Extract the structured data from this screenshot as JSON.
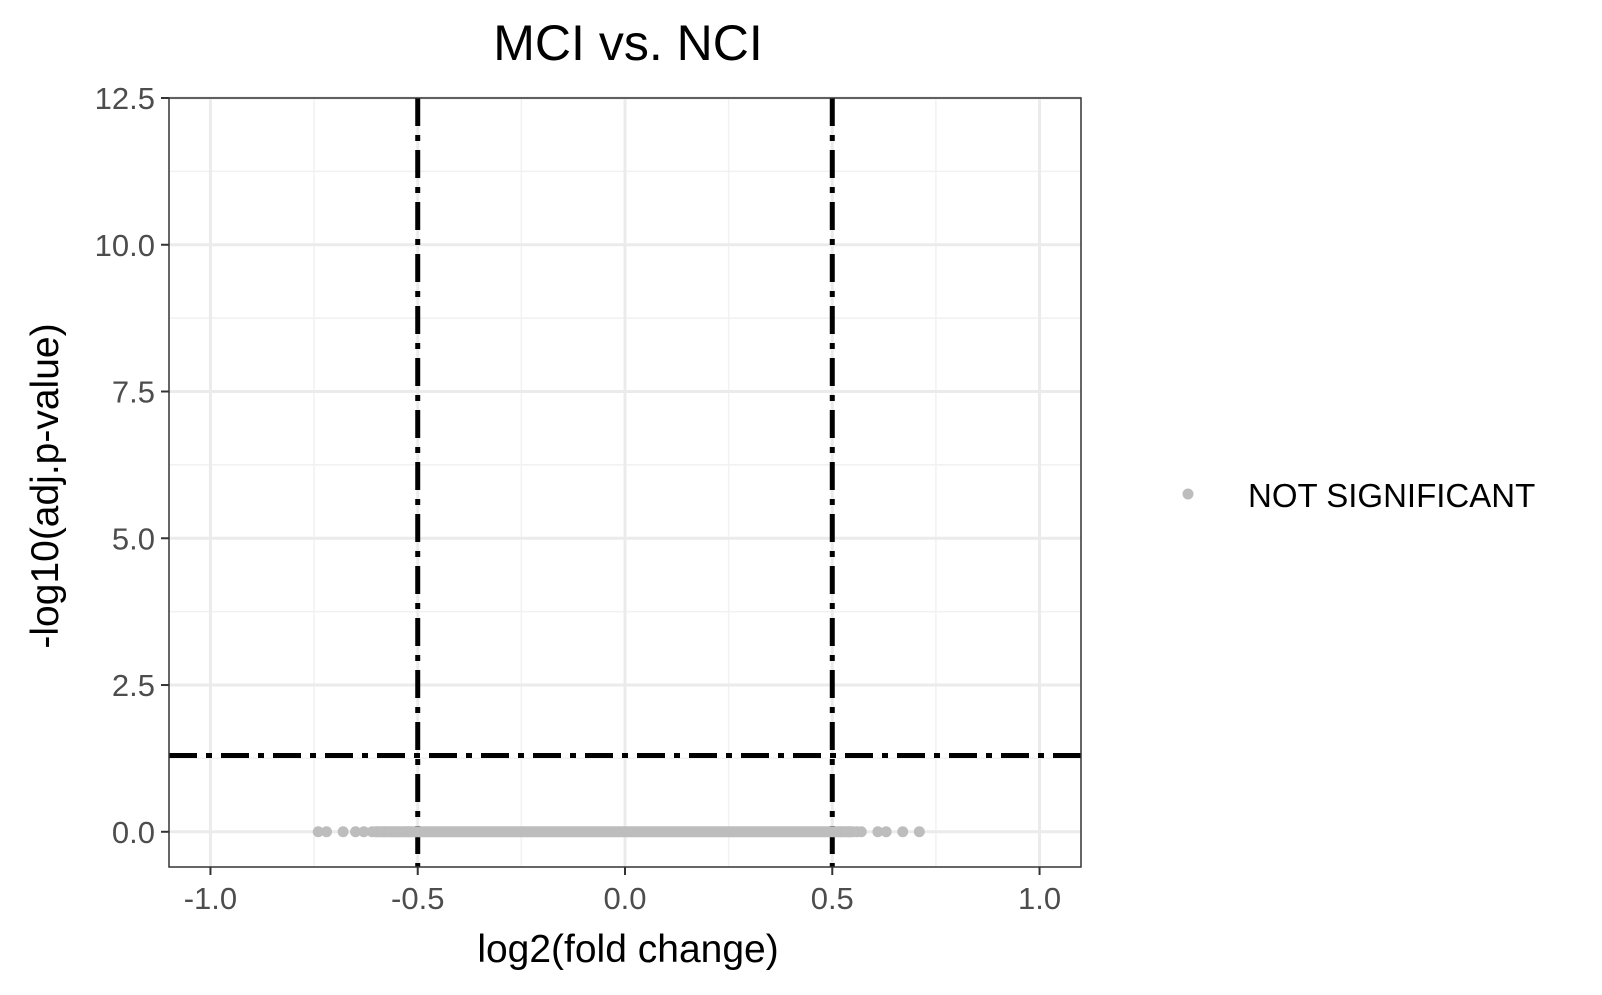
{
  "chart_data": {
    "type": "scatter",
    "title": "MCI vs. NCI",
    "xlabel": "log2(fold change)",
    "ylabel": "-log10(adj.p-value)",
    "xlim": [
      -1.1,
      1.1
    ],
    "ylim": [
      -0.6,
      12.5
    ],
    "x_ticks": [
      -1.0,
      -0.5,
      0.0,
      0.5,
      1.0
    ],
    "x_tick_labels": [
      "-1.0",
      "-0.5",
      "0.0",
      "0.5",
      "1.0"
    ],
    "y_ticks": [
      0.0,
      2.5,
      5.0,
      7.5,
      10.0,
      12.5
    ],
    "y_tick_labels": [
      "0.0",
      "2.5",
      "5.0",
      "7.5",
      "10.0",
      "12.5"
    ],
    "grid": true,
    "legend_position": "right",
    "thresholds": {
      "vertical_x": [
        -0.5,
        0.5
      ],
      "horizontal_y": 1.3
    },
    "series": [
      {
        "name": "NOT SIGNIFICANT",
        "color": "#bdbdbd",
        "x_range_dense": [
          -0.6,
          0.55
        ],
        "points": [
          {
            "x": -0.74,
            "y": 0.0
          },
          {
            "x": -0.72,
            "y": 0.0
          },
          {
            "x": -0.68,
            "y": 0.0
          },
          {
            "x": -0.65,
            "y": 0.0
          },
          {
            "x": -0.63,
            "y": 0.0
          },
          {
            "x": -0.61,
            "y": 0.0
          },
          {
            "x": -0.6,
            "y": 0.0
          },
          {
            "x": -0.58,
            "y": 0.0
          },
          {
            "x": -0.56,
            "y": 0.0
          },
          {
            "x": -0.55,
            "y": 0.0
          },
          {
            "x": -0.53,
            "y": 0.0
          },
          {
            "x": -0.52,
            "y": 0.0
          },
          {
            "x": 0.52,
            "y": 0.0
          },
          {
            "x": 0.54,
            "y": 0.0
          },
          {
            "x": 0.56,
            "y": 0.0
          },
          {
            "x": 0.57,
            "y": 0.0
          },
          {
            "x": 0.61,
            "y": 0.0
          },
          {
            "x": 0.63,
            "y": 0.0
          },
          {
            "x": 0.67,
            "y": 0.0
          },
          {
            "x": 0.71,
            "y": 0.0
          }
        ]
      }
    ]
  }
}
